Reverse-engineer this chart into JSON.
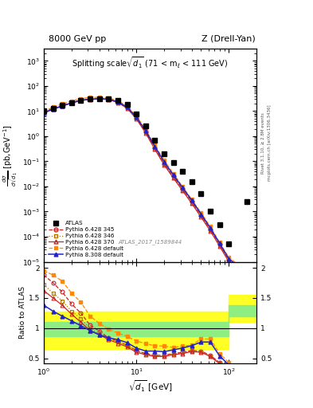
{
  "title_left": "8000 GeV pp",
  "title_right": "Z (Drell-Yan)",
  "plot_title": "Splitting scale$\\sqrt{d_1}$ (71 < m$_l$ < 111 GeV)",
  "ylabel_main": "dσ/dsqrt[d_1] [pb,GeV⁻¹]",
  "ylabel_ratio": "Ratio to ATLAS",
  "xlabel": "sqrt{d_1} [GeV]",
  "watermark": "ATLAS_2017_I1589844",
  "right_label1": "Rivet 3.1.10, ≥ 2.8M events",
  "right_label2": "mcplots.cern.ch [arXiv:1306.3436]",
  "atlas_x": [
    1.0,
    1.26,
    1.58,
    2.0,
    2.51,
    3.16,
    3.98,
    5.01,
    6.31,
    7.94,
    10.0,
    12.6,
    15.8,
    20.0,
    25.1,
    31.6,
    39.8,
    50.1,
    63.1,
    79.4,
    100.0,
    158.0
  ],
  "atlas_y": [
    10.5,
    13.0,
    17.0,
    22.0,
    27.0,
    30.0,
    32.0,
    32.0,
    27.0,
    18.0,
    8.0,
    2.5,
    0.7,
    0.2,
    0.09,
    0.04,
    0.016,
    0.005,
    0.001,
    0.0003,
    5e-05,
    0.0025
  ],
  "p6345_x": [
    1.0,
    1.26,
    1.58,
    2.0,
    2.51,
    3.16,
    3.98,
    5.01,
    6.31,
    7.94,
    10.0,
    12.6,
    15.8,
    20.0,
    25.1,
    31.6,
    39.8,
    50.1,
    63.1,
    79.4,
    100.0,
    158.0
  ],
  "p6345_y": [
    9.5,
    13.0,
    17.0,
    22.0,
    27.5,
    30.0,
    31.5,
    30.0,
    23.0,
    14.0,
    5.5,
    1.5,
    0.35,
    0.08,
    0.025,
    0.008,
    0.0025,
    0.0007,
    0.0002,
    5e-05,
    1.2e-05,
    3e-06
  ],
  "p6346_x": [
    1.0,
    1.26,
    1.58,
    2.0,
    2.51,
    3.16,
    3.98,
    5.01,
    6.31,
    7.94,
    10.0,
    12.6,
    15.8,
    20.0,
    25.1,
    31.6,
    39.8,
    50.1,
    63.1,
    79.4,
    100.0,
    158.0
  ],
  "p6346_y": [
    9.0,
    12.5,
    16.5,
    21.5,
    27.0,
    29.5,
    31.0,
    29.5,
    22.5,
    13.5,
    5.2,
    1.4,
    0.32,
    0.075,
    0.023,
    0.007,
    0.0022,
    0.00065,
    0.00018,
    4.5e-05,
    1.1e-05,
    2.8e-06
  ],
  "p6370_x": [
    1.0,
    1.26,
    1.58,
    2.0,
    2.51,
    3.16,
    3.98,
    5.01,
    6.31,
    7.94,
    10.0,
    12.6,
    15.8,
    20.0,
    25.1,
    31.6,
    39.8,
    50.1,
    63.1,
    79.4,
    100.0,
    158.0
  ],
  "p6370_y": [
    9.0,
    12.0,
    16.0,
    21.0,
    26.5,
    29.0,
    30.5,
    29.0,
    22.0,
    13.0,
    5.0,
    1.35,
    0.31,
    0.072,
    0.022,
    0.0068,
    0.0021,
    0.0006,
    0.00017,
    4.2e-05,
    1e-05,
    2.5e-06
  ],
  "p6def_x": [
    1.0,
    1.26,
    1.58,
    2.0,
    2.51,
    3.16,
    3.98,
    5.01,
    6.31,
    7.94,
    10.0,
    12.6,
    15.8,
    20.0,
    25.1,
    31.6,
    39.8,
    50.1,
    63.1,
    79.4,
    100.0,
    158.0
  ],
  "p6def_y": [
    10.0,
    14.5,
    19.5,
    25.5,
    32.0,
    35.0,
    36.0,
    34.0,
    26.0,
    16.0,
    6.5,
    1.9,
    0.45,
    0.11,
    0.033,
    0.01,
    0.003,
    0.0009,
    0.00025,
    6e-05,
    1.5e-05,
    4e-06
  ],
  "p8def_x": [
    1.0,
    1.26,
    1.58,
    2.0,
    2.51,
    3.16,
    3.98,
    5.01,
    6.31,
    7.94,
    10.0,
    12.6,
    15.8,
    20.0,
    25.1,
    31.6,
    39.8,
    50.1,
    63.1,
    79.4,
    100.0,
    158.0
  ],
  "p8def_y": [
    8.5,
    12.0,
    16.0,
    21.5,
    27.0,
    30.0,
    31.5,
    30.5,
    23.5,
    14.5,
    5.8,
    1.65,
    0.4,
    0.095,
    0.029,
    0.009,
    0.0028,
    0.0008,
    0.00022,
    5.5e-05,
    1.3e-05,
    3.5e-06
  ],
  "ratio_x": [
    1.0,
    1.26,
    1.58,
    2.0,
    2.51,
    3.16,
    3.98,
    5.01,
    6.31,
    7.94,
    10.0,
    12.6,
    15.8,
    20.0,
    25.1,
    31.6,
    39.8,
    50.1,
    63.1,
    79.4,
    100.0,
    158.0
  ],
  "ratio_p6345": [
    1.88,
    1.75,
    1.6,
    1.4,
    1.25,
    1.05,
    0.95,
    0.84,
    0.78,
    0.72,
    0.63,
    0.58,
    0.55,
    0.55,
    0.58,
    0.6,
    0.63,
    0.62,
    0.55,
    0.43,
    0.35,
    0.3
  ],
  "ratio_p6346": [
    1.72,
    1.58,
    1.45,
    1.28,
    1.16,
    0.99,
    0.91,
    0.83,
    0.77,
    0.71,
    0.62,
    0.57,
    0.54,
    0.54,
    0.57,
    0.59,
    0.62,
    0.61,
    0.54,
    0.42,
    0.34,
    0.29
  ],
  "ratio_p6370": [
    1.62,
    1.5,
    1.38,
    1.23,
    1.1,
    0.96,
    0.89,
    0.81,
    0.75,
    0.69,
    0.6,
    0.56,
    0.53,
    0.53,
    0.56,
    0.58,
    0.61,
    0.6,
    0.53,
    0.41,
    0.33,
    0.28
  ],
  "ratio_p6def": [
    1.95,
    1.88,
    1.78,
    1.58,
    1.43,
    1.2,
    1.08,
    0.98,
    0.92,
    0.86,
    0.79,
    0.74,
    0.71,
    0.7,
    0.68,
    0.7,
    0.72,
    0.82,
    0.82,
    0.58,
    0.43,
    0.26
  ],
  "ratio_p8def": [
    1.38,
    1.28,
    1.2,
    1.12,
    1.04,
    0.96,
    0.89,
    0.84,
    0.81,
    0.76,
    0.67,
    0.62,
    0.62,
    0.61,
    0.64,
    0.67,
    0.71,
    0.77,
    0.77,
    0.54,
    0.39,
    0.29
  ],
  "band_x_edges": [
    1.0,
    1.26,
    1.58,
    2.0,
    2.51,
    3.16,
    3.98,
    5.01,
    6.31,
    7.94,
    10.0,
    12.6,
    15.8,
    20.0,
    25.1,
    31.6,
    39.8,
    50.1,
    63.1,
    79.4,
    100.0,
    200.0
  ],
  "band_green_lo": [
    0.87,
    0.87,
    0.87,
    0.87,
    0.87,
    0.87,
    0.87,
    0.87,
    0.87,
    0.87,
    0.87,
    0.87,
    0.87,
    0.87,
    0.87,
    0.87,
    0.87,
    0.87,
    0.87,
    0.87,
    1.2,
    1.2
  ],
  "band_green_hi": [
    1.1,
    1.1,
    1.1,
    1.1,
    1.1,
    1.1,
    1.1,
    1.1,
    1.1,
    1.1,
    1.1,
    1.1,
    1.1,
    1.1,
    1.1,
    1.1,
    1.1,
    1.1,
    1.1,
    1.1,
    1.38,
    1.38
  ],
  "band_yellow_lo": [
    0.65,
    0.65,
    0.65,
    0.65,
    0.65,
    0.65,
    0.65,
    0.65,
    0.65,
    0.65,
    0.65,
    0.65,
    0.65,
    0.65,
    0.65,
    0.65,
    0.65,
    0.65,
    0.65,
    0.65,
    1.1,
    1.55
  ],
  "band_yellow_hi": [
    1.28,
    1.28,
    1.28,
    1.28,
    1.28,
    1.28,
    1.28,
    1.28,
    1.28,
    1.28,
    1.28,
    1.28,
    1.28,
    1.28,
    1.28,
    1.28,
    1.28,
    1.28,
    1.28,
    1.28,
    1.55,
    1.95
  ],
  "color_p6345": "#cc2222",
  "color_p6346": "#aa7700",
  "color_p6370": "#cc2222",
  "color_p6def": "#ff8800",
  "color_p8def": "#2222cc",
  "xlim": [
    1.0,
    200.0
  ],
  "ylim_main": [
    1e-05,
    3000.0
  ],
  "ylim_ratio": [
    0.42,
    2.1
  ]
}
